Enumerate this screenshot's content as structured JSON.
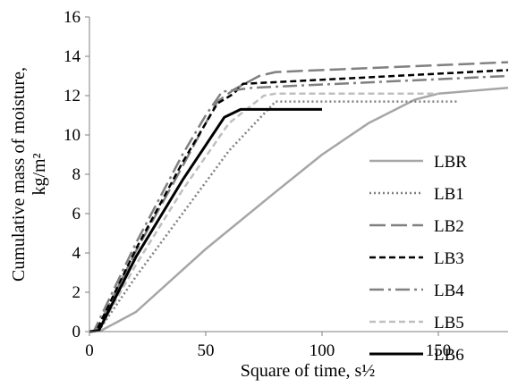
{
  "chart_data": {
    "type": "line",
    "title": "",
    "xlabel": "Square of time, s½",
    "ylabel": [
      "Cumulative mass of moisture,",
      "kg/m²"
    ],
    "xlim": [
      0,
      180
    ],
    "ylim": [
      0,
      16
    ],
    "x_ticks": [
      0,
      50,
      100,
      150
    ],
    "y_ticks": [
      0,
      2,
      4,
      6,
      8,
      10,
      12,
      14,
      16
    ],
    "grid": false,
    "legend_position": "right",
    "series": [
      {
        "name": "LBR",
        "color": "#a6a6a6",
        "dash": "solid",
        "points": [
          [
            0,
            0
          ],
          [
            5,
            0.05
          ],
          [
            20,
            1.0
          ],
          [
            50,
            4.2
          ],
          [
            80,
            7.1
          ],
          [
            100,
            9.0
          ],
          [
            120,
            10.6
          ],
          [
            140,
            11.8
          ],
          [
            150,
            12.1
          ],
          [
            180,
            12.4
          ]
        ]
      },
      {
        "name": "LB1",
        "color": "#7f7f7f",
        "dash": "dotted",
        "points": [
          [
            0,
            0
          ],
          [
            4,
            0.05
          ],
          [
            20,
            2.8
          ],
          [
            40,
            6.0
          ],
          [
            60,
            9.2
          ],
          [
            80,
            11.7
          ],
          [
            100,
            11.7
          ],
          [
            130,
            11.7
          ],
          [
            158,
            11.7
          ]
        ]
      },
      {
        "name": "LB2",
        "color": "#808080",
        "dash": "longdash",
        "points": [
          [
            0,
            0
          ],
          [
            3,
            0.05
          ],
          [
            20,
            4.1
          ],
          [
            40,
            8.4
          ],
          [
            55,
            11.7
          ],
          [
            62,
            12.3
          ],
          [
            73,
            13.0
          ],
          [
            80,
            13.2
          ],
          [
            180,
            13.7
          ]
        ]
      },
      {
        "name": "LB3",
        "color": "#000000",
        "dash": "dash",
        "points": [
          [
            0,
            0
          ],
          [
            3,
            0.05
          ],
          [
            20,
            4.2
          ],
          [
            40,
            8.6
          ],
          [
            55,
            11.6
          ],
          [
            62,
            12.1
          ],
          [
            66,
            12.6
          ],
          [
            180,
            13.3
          ]
        ]
      },
      {
        "name": "LB4",
        "color": "#808080",
        "dash": "dashdot",
        "points": [
          [
            0,
            0
          ],
          [
            2,
            0.05
          ],
          [
            20,
            4.5
          ],
          [
            40,
            9.0
          ],
          [
            50,
            11.0
          ],
          [
            57,
            12.2
          ],
          [
            70,
            12.4
          ],
          [
            180,
            13.0
          ]
        ]
      },
      {
        "name": "LB5",
        "color": "#bfbfbf",
        "dash": "dash",
        "points": [
          [
            0,
            0
          ],
          [
            4,
            0.05
          ],
          [
            20,
            3.4
          ],
          [
            40,
            7.2
          ],
          [
            60,
            10.6
          ],
          [
            75,
            12.0
          ],
          [
            80,
            12.1
          ],
          [
            100,
            12.1
          ],
          [
            150,
            12.1
          ]
        ]
      },
      {
        "name": "LB6",
        "color": "#000000",
        "dash": "solid",
        "width": 3,
        "points": [
          [
            0,
            0
          ],
          [
            4,
            0.05
          ],
          [
            20,
            3.8
          ],
          [
            40,
            7.7
          ],
          [
            58,
            10.9
          ],
          [
            65,
            11.3
          ],
          [
            100,
            11.3
          ]
        ]
      }
    ]
  }
}
